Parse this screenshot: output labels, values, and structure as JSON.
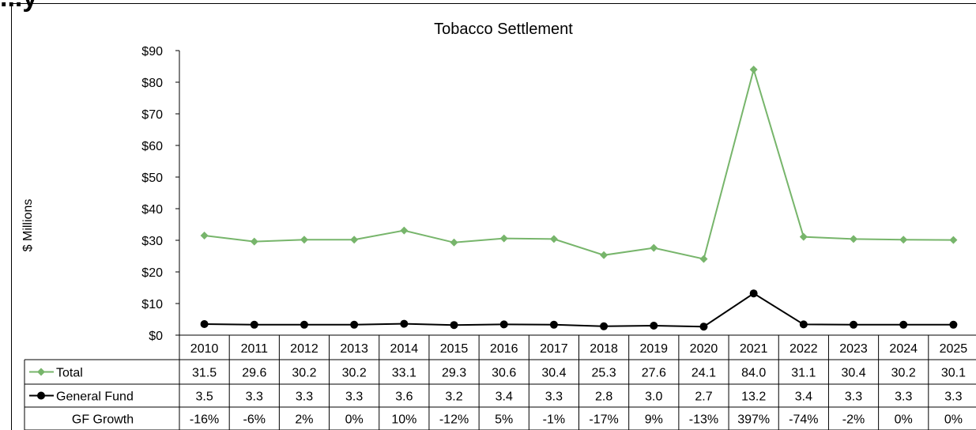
{
  "cut_heading": "...y",
  "chart_data": {
    "type": "line",
    "title": "Tobacco Settlement",
    "ylabel": "$ Millions",
    "xlabel": "",
    "ylim": [
      0,
      90
    ],
    "y_ticks": [
      "$0",
      "$10",
      "$20",
      "$30",
      "$40",
      "$50",
      "$60",
      "$70",
      "$80",
      "$90"
    ],
    "grid": false,
    "legend": "data-table-left",
    "categories": [
      "2010",
      "2011",
      "2012",
      "2013",
      "2014",
      "2015",
      "2016",
      "2017",
      "2018",
      "2019",
      "2020",
      "2021",
      "2022",
      "2023",
      "2024",
      "2025"
    ],
    "series": [
      {
        "name": "Total",
        "color": "#77B56B",
        "values": [
          31.5,
          29.6,
          30.2,
          30.2,
          33.1,
          29.3,
          30.6,
          30.4,
          25.3,
          27.6,
          24.1,
          84.0,
          31.1,
          30.4,
          30.2,
          30.1
        ],
        "labels": [
          "31.5",
          "29.6",
          "30.2",
          "30.2",
          "33.1",
          "29.3",
          "30.6",
          "30.4",
          "25.3",
          "27.6",
          "24.1",
          "84.0",
          "31.1",
          "30.4",
          "30.2",
          "30.1"
        ]
      },
      {
        "name": "General Fund",
        "color": "#000000",
        "values": [
          3.5,
          3.3,
          3.3,
          3.3,
          3.6,
          3.2,
          3.4,
          3.3,
          2.8,
          3.0,
          2.7,
          13.2,
          3.4,
          3.3,
          3.3,
          3.3
        ],
        "labels": [
          "3.5",
          "3.3",
          "3.3",
          "3.3",
          "3.6",
          "3.2",
          "3.4",
          "3.3",
          "2.8",
          "3.0",
          "2.7",
          "13.2",
          "3.4",
          "3.3",
          "3.3",
          "3.3"
        ]
      }
    ],
    "table_rows": [
      {
        "name": "GF Growth",
        "values": [
          "-16%",
          "-6%",
          "2%",
          "0%",
          "10%",
          "-12%",
          "5%",
          "-1%",
          "-17%",
          "9%",
          "-13%",
          "397%",
          "-74%",
          "-2%",
          "0%",
          "0%"
        ]
      }
    ]
  }
}
